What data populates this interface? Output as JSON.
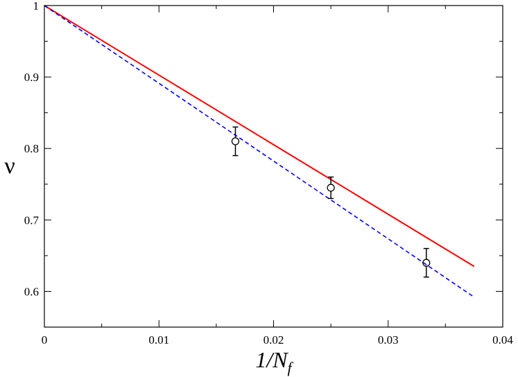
{
  "chart_data": {
    "type": "line",
    "title": "",
    "xlabel": "1/N",
    "xlabel_subscript": "f",
    "ylabel": "ν",
    "xlim": [
      0,
      0.04
    ],
    "ylim": [
      0.55,
      1.0
    ],
    "x_ticks": [
      0,
      0.01,
      0.02,
      0.03,
      0.04
    ],
    "x_tick_labels": [
      "0",
      "0.01",
      "0.02",
      "0.03",
      "0.04"
    ],
    "y_ticks": [
      0.6,
      0.7,
      0.8,
      0.9,
      1.0
    ],
    "y_tick_labels": [
      "0.6",
      "0.7",
      "0.8",
      "0.9",
      "1"
    ],
    "grid": false,
    "series": [
      {
        "style": "solid",
        "color": "#ff0000",
        "x": [
          0,
          0.0375
        ],
        "y": [
          1.0,
          0.635
        ]
      },
      {
        "style": "dashed",
        "color": "#0000ff",
        "x": [
          0,
          0.0375
        ],
        "y": [
          1.0,
          0.592
        ]
      },
      {
        "style": "markers",
        "marker": "open-circle",
        "color": "#000000",
        "x": [
          0.01667,
          0.025,
          0.03333
        ],
        "y": [
          0.81,
          0.745,
          0.64
        ],
        "yerr": [
          0.02,
          0.015,
          0.02
        ]
      }
    ]
  }
}
